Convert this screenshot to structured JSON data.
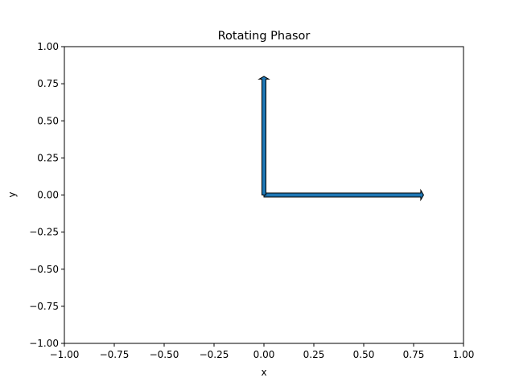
{
  "chart_data": {
    "type": "quiver",
    "title": "Rotating Phasor",
    "xlabel": "x",
    "ylabel": "y",
    "xlim": [
      -1.0,
      1.0
    ],
    "ylim": [
      -1.0,
      1.0
    ],
    "x_ticks": [
      -1.0,
      -0.75,
      -0.5,
      -0.25,
      0.0,
      0.25,
      0.5,
      0.75,
      1.0
    ],
    "y_ticks": [
      -1.0,
      -0.75,
      -0.5,
      -0.25,
      0.0,
      0.25,
      0.5,
      0.75,
      1.0
    ],
    "x_tick_labels": [
      "−1.00",
      "−0.75",
      "−0.50",
      "−0.25",
      "0.00",
      "0.25",
      "0.50",
      "0.75",
      "1.00"
    ],
    "y_tick_labels": [
      "−1.00",
      "−0.75",
      "−0.50",
      "−0.25",
      "0.00",
      "0.25",
      "0.50",
      "0.75",
      "1.00"
    ],
    "grid": false,
    "arrows": [
      {
        "x0": 0.0,
        "y0": 0.0,
        "dx": 0.8,
        "dy": 0.0
      },
      {
        "x0": 0.0,
        "y0": 0.0,
        "dx": 0.0,
        "dy": 0.8
      }
    ],
    "colors": {
      "arrow_fill": "#1f77b4",
      "arrow_edge": "#000000",
      "axes": "#000000",
      "background": "#ffffff"
    }
  }
}
